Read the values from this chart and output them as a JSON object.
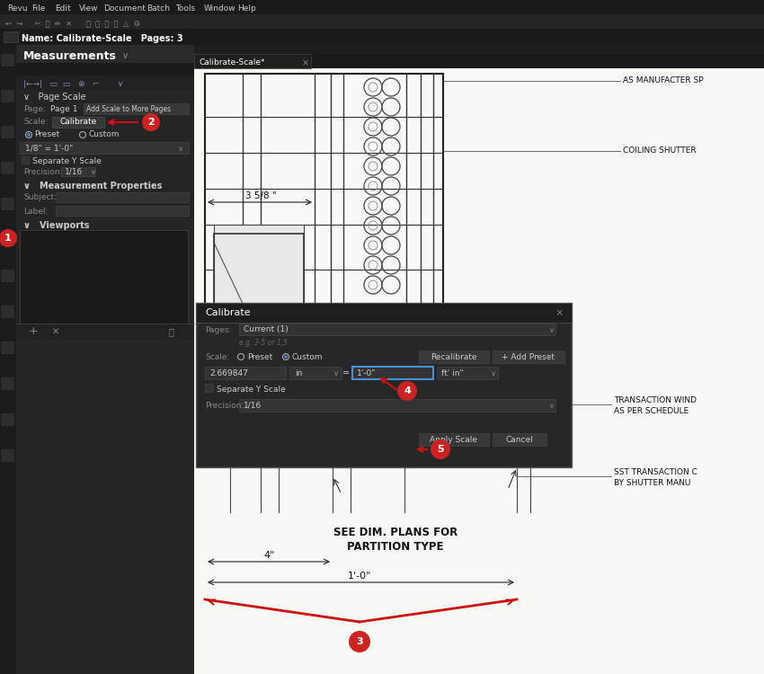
{
  "bg_dark": "#1e1e1e",
  "bg_medium": "#2d2d2d",
  "bg_panel": "#252525",
  "bg_toolbar": "#1a1a1a",
  "text_white": "#ffffff",
  "text_gray": "#888888",
  "text_light": "#cccccc",
  "text_dim": "#999999",
  "accent_blue": "#4a7fc1",
  "red_circle": "#cc2222",
  "red_arrow": "#cc1111",
  "drawing_bg": "#f8f8f5",
  "border_color": "#444444",
  "border_light": "#555555",
  "button_bg": "#383838",
  "input_bg": "#333333",
  "blue_border": "#4a90d9",
  "icon_bar_bg": "#1c1c1c",
  "tab_bg": "#1e1e1e",
  "menu_items": [
    "Revu",
    "File",
    "Edit",
    "View",
    "Document",
    "Batch",
    "Tools",
    "Window",
    "Help"
  ],
  "panel_title": "Measurements",
  "file_name": "Name: Calibrate-Scale   Pages: 3",
  "tab_title": "Calibrate-Scale*",
  "page_label": "Page:",
  "page_value": "Page 1",
  "add_scale_btn": "Add Scale to More Pages",
  "scale_label": "Scale:",
  "calibrate_btn": "Calibrate",
  "preset_label": "Preset",
  "custom_label": "Custom",
  "preset_value": "1/8\" = 1'-0\"",
  "separate_y": "Separate Y Scale",
  "precision_label": "Precision:",
  "precision_value": "1/16",
  "subject_label": "Subject:",
  "label_label": "Label:",
  "dialog_title": "Calibrate",
  "pages_label": "Pages:",
  "pages_value": "Current (1)",
  "eg_text": "e.g. 3-5 or 1,5",
  "scale_dlg": "Scale:",
  "recalibrate_btn": "Recalibrate",
  "add_preset_btn": "+ Add Preset",
  "measured_value": "2.669847",
  "measured_unit": "in",
  "known_value": "1'-0\"",
  "known_unit": "ft' in\"",
  "apply_btn": "Apply Scale",
  "cancel_btn": "Cancel",
  "dim_358": "3 5/8 \"",
  "dim_4in": "4\"",
  "dim_1ft": "1'-0\"",
  "see_dim1": "SEE DIM. PLANS FOR",
  "see_dim2": "PARTITION TYPE",
  "lbl_as_manuf": "AS MANUFACTER SP",
  "lbl_coiling": "COILING SHUTTER",
  "lbl_transaction1": "TRANSACTION WIND",
  "lbl_transaction2": "AS PER SCHEDULE",
  "lbl_sst1": "SST TRANSACTION C",
  "lbl_sst2": "BY SHUTTER MANU"
}
